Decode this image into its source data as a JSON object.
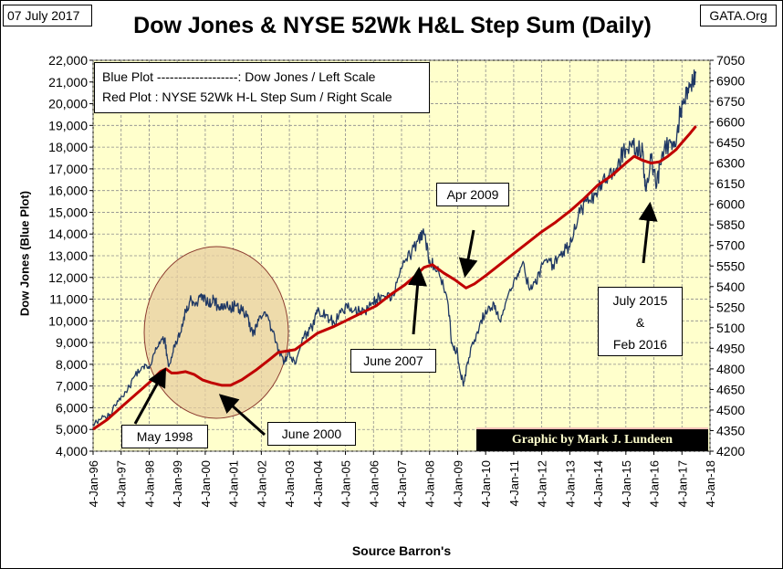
{
  "date_label": "07 July 2017",
  "source_site": "GATA.Org",
  "credit": "Graphic by Mark J. Lundeen",
  "colors": {
    "plot_bg": "#ffffcc",
    "blue": "#1f3864",
    "red": "#c00000",
    "ellipse_fill": "#e8cfa0",
    "ellipse_stroke": "#8b3a2f",
    "credit_bg": "#000000",
    "credit_text": "#ffffcc"
  },
  "legend": {
    "line1": "Blue Plot -------------------:  Dow Jones / Left Scale",
    "line2": "Red Plot : NYSE 52Wk H-L Step Sum / Right Scale"
  },
  "annotations": {
    "may1998": "May 1998",
    "june2000": "June 2000",
    "june2007": "June 2007",
    "apr2009": "Apr 2009",
    "jul2015_line1": "July 2015",
    "jul2015_line2": "&",
    "jul2015_line3": "Feb 2016"
  },
  "chart_data": {
    "type": "line",
    "title": "Dow Jones & NYSE 52Wk H&L Step Sum (Daily)",
    "xlabel": "Source Barron's",
    "ylabel": "Dow Jones    (Blue Plot)",
    "y2label": "",
    "xlim": [
      1996.0,
      2018.0
    ],
    "ylim": [
      4000,
      22000
    ],
    "y2lim": [
      4200,
      7050
    ],
    "x_ticks": [
      1996,
      1997,
      1998,
      1999,
      2000,
      2001,
      2002,
      2003,
      2004,
      2005,
      2006,
      2007,
      2008,
      2009,
      2010,
      2011,
      2012,
      2013,
      2014,
      2015,
      2016,
      2017,
      2018
    ],
    "x_tick_labels": [
      "4-Jan-96",
      "4-Jan-97",
      "4-Jan-98",
      "4-Jan-99",
      "4-Jan-00",
      "4-Jan-01",
      "4-Jan-02",
      "4-Jan-03",
      "4-Jan-04",
      "4-Jan-05",
      "4-Jan-06",
      "4-Jan-07",
      "4-Jan-08",
      "4-Jan-09",
      "4-Jan-10",
      "4-Jan-11",
      "4-Jan-12",
      "4-Jan-13",
      "4-Jan-14",
      "4-Jan-15",
      "4-Jan-16",
      "4-Jan-17",
      "4-Jan-18"
    ],
    "y_ticks": [
      4000,
      5000,
      6000,
      7000,
      8000,
      9000,
      10000,
      11000,
      12000,
      13000,
      14000,
      15000,
      16000,
      17000,
      18000,
      19000,
      20000,
      21000,
      22000
    ],
    "y_tick_labels": [
      "4,000",
      "5,000",
      "6,000",
      "7,000",
      "8,000",
      "9,000",
      "10,000",
      "11,000",
      "12,000",
      "13,000",
      "14,000",
      "15,000",
      "16,000",
      "17,000",
      "18,000",
      "19,000",
      "20,000",
      "21,000",
      "22,000"
    ],
    "y2_ticks": [
      4200,
      4350,
      4500,
      4650,
      4800,
      4950,
      5100,
      5250,
      5400,
      5550,
      5700,
      5850,
      6000,
      6150,
      6300,
      6450,
      6600,
      6750,
      6900,
      7050
    ],
    "y2_tick_labels": [
      "4200",
      "4350",
      "4500",
      "4650",
      "4800",
      "4950",
      "5100",
      "5250",
      "5400",
      "5550",
      "5700",
      "5850",
      "6000",
      "6150",
      "6300",
      "6450",
      "6600",
      "6750",
      "6900",
      "7050"
    ],
    "series": [
      {
        "name": "Dow Jones / Left Scale",
        "axis": "left",
        "color": "#1f3864",
        "x": [
          1996.0,
          1996.3,
          1996.6,
          1996.9,
          1997.2,
          1997.5,
          1997.8,
          1998.0,
          1998.3,
          1998.55,
          1998.7,
          1998.9,
          1999.1,
          1999.3,
          1999.5,
          1999.7,
          1999.9,
          2000.1,
          2000.3,
          2000.5,
          2000.7,
          2000.9,
          2001.1,
          2001.3,
          2001.5,
          2001.7,
          2001.9,
          2002.2,
          2002.5,
          2002.8,
          2003.0,
          2003.2,
          2003.5,
          2003.8,
          2004.0,
          2004.3,
          2004.6,
          2004.9,
          2005.2,
          2005.5,
          2005.8,
          2006.1,
          2006.4,
          2006.7,
          2007.0,
          2007.3,
          2007.6,
          2007.8,
          2008.0,
          2008.3,
          2008.6,
          2008.8,
          2009.0,
          2009.2,
          2009.4,
          2009.7,
          2010.0,
          2010.3,
          2010.5,
          2010.8,
          2011.1,
          2011.3,
          2011.6,
          2011.8,
          2012.1,
          2012.4,
          2012.7,
          2013.0,
          2013.3,
          2013.6,
          2013.9,
          2014.1,
          2014.4,
          2014.7,
          2014.9,
          2015.2,
          2015.4,
          2015.6,
          2015.7,
          2015.9,
          2016.1,
          2016.3,
          2016.6,
          2016.8,
          2016.95,
          2017.1,
          2017.3,
          2017.5
        ],
        "values": [
          5200,
          5500,
          5700,
          6300,
          6700,
          7500,
          7900,
          7800,
          8800,
          9200,
          7900,
          8900,
          9400,
          10500,
          11000,
          10800,
          11200,
          10800,
          11000,
          10500,
          10700,
          10600,
          10700,
          10500,
          10300,
          9300,
          10000,
          10300,
          9000,
          8000,
          8600,
          8000,
          9200,
          9700,
          10400,
          10300,
          9900,
          10500,
          10600,
          10400,
          10500,
          11000,
          11100,
          11200,
          12400,
          13000,
          13800,
          14000,
          12800,
          12500,
          11200,
          9000,
          8500,
          7000,
          8300,
          9500,
          10500,
          10800,
          10000,
          11200,
          11900,
          12600,
          11500,
          11700,
          12800,
          12600,
          13200,
          13400,
          14800,
          15500,
          15800,
          16300,
          16700,
          17000,
          17800,
          18000,
          18000,
          17800,
          16000,
          17500,
          16200,
          17800,
          18200,
          18200,
          19800,
          20100,
          20900,
          21400
        ]
      },
      {
        "name": "NYSE 52Wk H-L Step Sum / Right Scale",
        "axis": "right",
        "color": "#c00000",
        "x": [
          1996.0,
          1996.5,
          1997.0,
          1997.5,
          1998.0,
          1998.4,
          1998.6,
          1998.8,
          1999.0,
          1999.3,
          1999.6,
          1999.9,
          2000.2,
          2000.6,
          2000.9,
          2001.3,
          2001.8,
          2002.3,
          2002.6,
          2002.9,
          2003.2,
          2003.6,
          2004.0,
          2004.6,
          2005.1,
          2005.6,
          2006.1,
          2006.6,
          2007.1,
          2007.5,
          2007.8,
          2008.1,
          2008.5,
          2008.9,
          2009.1,
          2009.3,
          2009.6,
          2010.0,
          2010.5,
          2011.0,
          2011.5,
          2012.0,
          2012.5,
          2013.0,
          2013.5,
          2014.0,
          2014.5,
          2015.0,
          2015.3,
          2015.6,
          2015.9,
          2016.2,
          2016.5,
          2016.8,
          2017.0,
          2017.3,
          2017.5
        ],
        "values": [
          4360,
          4430,
          4520,
          4610,
          4700,
          4780,
          4800,
          4770,
          4770,
          4780,
          4760,
          4720,
          4700,
          4680,
          4680,
          4720,
          4790,
          4870,
          4920,
          4930,
          4940,
          5000,
          5060,
          5110,
          5160,
          5210,
          5260,
          5340,
          5410,
          5480,
          5540,
          5560,
          5500,
          5450,
          5420,
          5390,
          5420,
          5480,
          5560,
          5640,
          5720,
          5800,
          5870,
          5950,
          6040,
          6140,
          6210,
          6300,
          6350,
          6320,
          6300,
          6310,
          6350,
          6400,
          6450,
          6520,
          6570
        ]
      }
    ],
    "legend_position": "top-left"
  }
}
